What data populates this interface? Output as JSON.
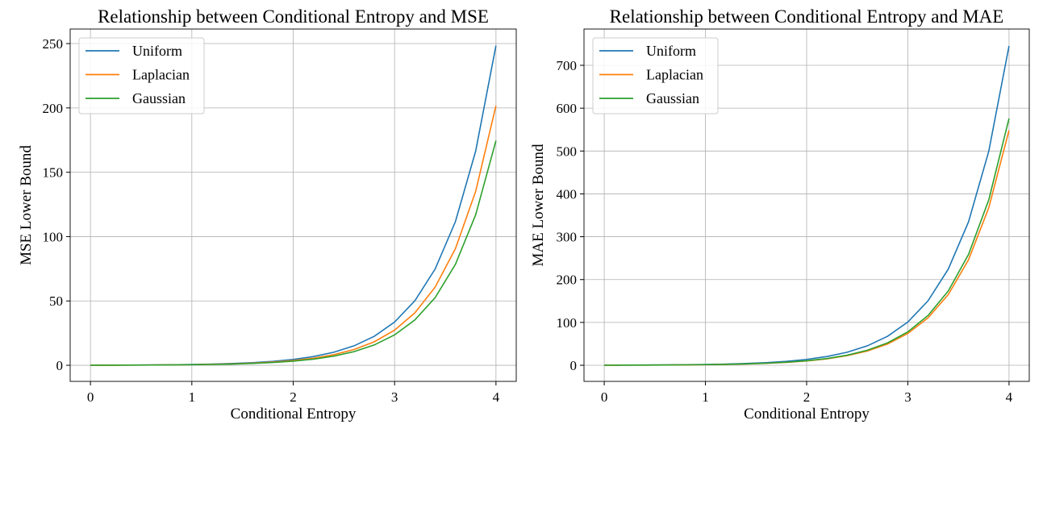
{
  "chart_data": [
    {
      "type": "line",
      "title": "Relationship between Conditional Entropy and MSE",
      "xlabel": "Conditional Entropy",
      "ylabel": "MSE Lower Bound",
      "xlim": [
        -0.2,
        4.2
      ],
      "ylim": [
        -12.5,
        261.3
      ],
      "xticks": [
        0,
        1,
        2,
        3,
        4
      ],
      "yticks": [
        0,
        50,
        100,
        150,
        200,
        250
      ],
      "grid": true,
      "legend": "top-left",
      "x": [
        0,
        0.2,
        0.4,
        0.6,
        0.8,
        1.0,
        1.2,
        1.4,
        1.6,
        1.8,
        2.0,
        2.2,
        2.4,
        2.6,
        2.8,
        3.0,
        3.2,
        3.4,
        3.6,
        3.8,
        4.0
      ],
      "series": [
        {
          "name": "Uniform",
          "color": "#1f77b4",
          "values": [
            0.08,
            0.12,
            0.19,
            0.28,
            0.41,
            0.62,
            0.92,
            1.37,
            2.04,
            3.05,
            4.55,
            6.79,
            10.13,
            15.11,
            22.54,
            33.62,
            50.15,
            74.82,
            111.62,
            166.52,
            248.41
          ]
        },
        {
          "name": "Laplacian",
          "color": "#ff7f0e",
          "values": [
            0.07,
            0.1,
            0.15,
            0.22,
            0.34,
            0.5,
            0.75,
            1.11,
            1.66,
            2.48,
            3.69,
            5.51,
            8.22,
            12.27,
            18.3,
            27.3,
            40.73,
            60.76,
            90.63,
            135.21,
            201.72
          ]
        },
        {
          "name": "Gaussian",
          "color": "#2ca02c",
          "values": [
            0.06,
            0.09,
            0.13,
            0.19,
            0.29,
            0.43,
            0.65,
            0.96,
            1.44,
            2.14,
            3.2,
            4.77,
            7.11,
            10.61,
            15.83,
            23.62,
            35.24,
            52.57,
            78.42,
            117.0,
            174.54
          ]
        }
      ]
    },
    {
      "type": "line",
      "title": "Relationship between Conditional Entropy and MAE",
      "xlabel": "Conditional Entropy",
      "ylabel": "MAE Lower Bound",
      "xlim": [
        -0.2,
        4.2
      ],
      "ylim": [
        -37.6,
        784.7
      ],
      "xticks": [
        0,
        1,
        2,
        3,
        4
      ],
      "yticks": [
        0,
        100,
        200,
        300,
        400,
        500,
        600,
        700
      ],
      "grid": true,
      "legend": "top-left",
      "x": [
        0,
        0.2,
        0.4,
        0.6,
        0.8,
        1.0,
        1.2,
        1.4,
        1.6,
        1.8,
        2.0,
        2.2,
        2.4,
        2.6,
        2.8,
        3.0,
        3.2,
        3.4,
        3.6,
        3.8,
        4.0
      ],
      "series": [
        {
          "name": "Uniform",
          "color": "#1f77b4",
          "values": [
            0.25,
            0.37,
            0.56,
            0.83,
            1.24,
            1.85,
            2.76,
            4.11,
            6.13,
            9.15,
            13.65,
            20.36,
            30.38,
            45.32,
            67.61,
            100.86,
            150.46,
            224.46,
            334.85,
            499.55,
            745.25
          ]
        },
        {
          "name": "Laplacian",
          "color": "#ff7f0e",
          "values": [
            0.18,
            0.27,
            0.41,
            0.61,
            0.91,
            1.36,
            2.03,
            3.02,
            4.51,
            6.73,
            10.04,
            14.98,
            22.35,
            33.34,
            49.74,
            74.21,
            110.7,
            165.15,
            246.37,
            367.55,
            548.32
          ]
        },
        {
          "name": "Gaussian",
          "color": "#2ca02c",
          "values": [
            0.19,
            0.29,
            0.43,
            0.64,
            0.96,
            1.43,
            2.13,
            3.18,
            4.74,
            7.07,
            10.55,
            15.74,
            23.48,
            35.02,
            52.25,
            77.94,
            116.28,
            173.46,
            258.77,
            386.05,
            575.93
          ]
        }
      ]
    }
  ]
}
